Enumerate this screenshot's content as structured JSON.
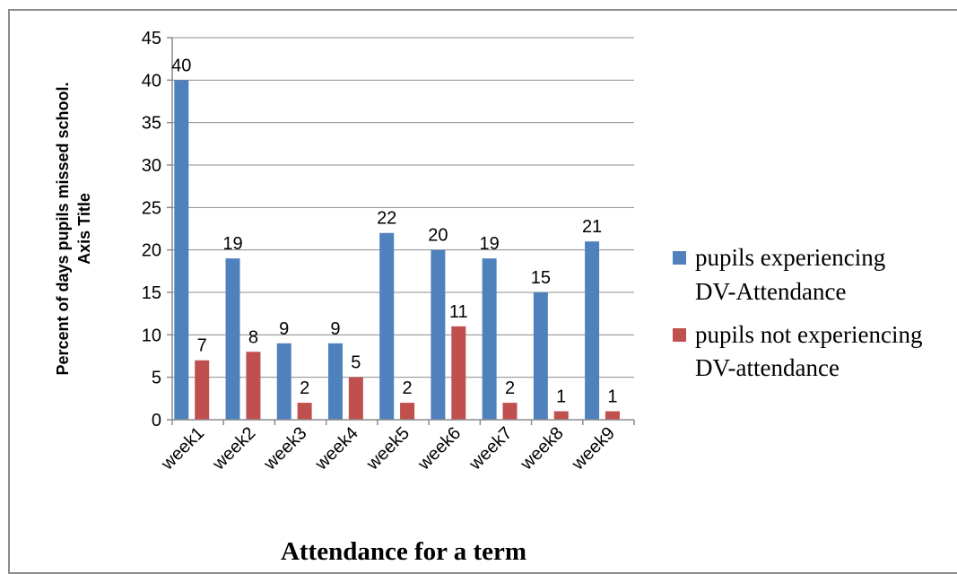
{
  "chart_data": {
    "type": "bar",
    "categories": [
      "week1",
      "week2",
      "week3",
      "week4",
      "week5",
      "week6",
      "week7",
      "week8",
      "week9"
    ],
    "series": [
      {
        "name": "pupils experiencing DV-Attendance",
        "color": "#4f81bd",
        "legend_lines": [
          "pupils experiencing",
          "DV-Attendance"
        ],
        "values": [
          40,
          19,
          9,
          9,
          22,
          20,
          19,
          15,
          21
        ]
      },
      {
        "name": "pupils not experiencing DV-attendance",
        "color": "#c0504d",
        "legend_lines": [
          "pupils not experiencing",
          "DV-attendance"
        ],
        "values": [
          7,
          8,
          2,
          5,
          2,
          11,
          2,
          1,
          1
        ]
      }
    ],
    "ylim": [
      0,
      45
    ],
    "yticks": [
      0,
      5,
      10,
      15,
      20,
      25,
      30,
      35,
      40,
      45
    ],
    "ylabel_lines": [
      "Percent of days pupils missed school.",
      "Axis Title"
    ],
    "xlabel": "Attendance for a term",
    "grid": true,
    "legend_position": "right",
    "data_labels": true
  }
}
